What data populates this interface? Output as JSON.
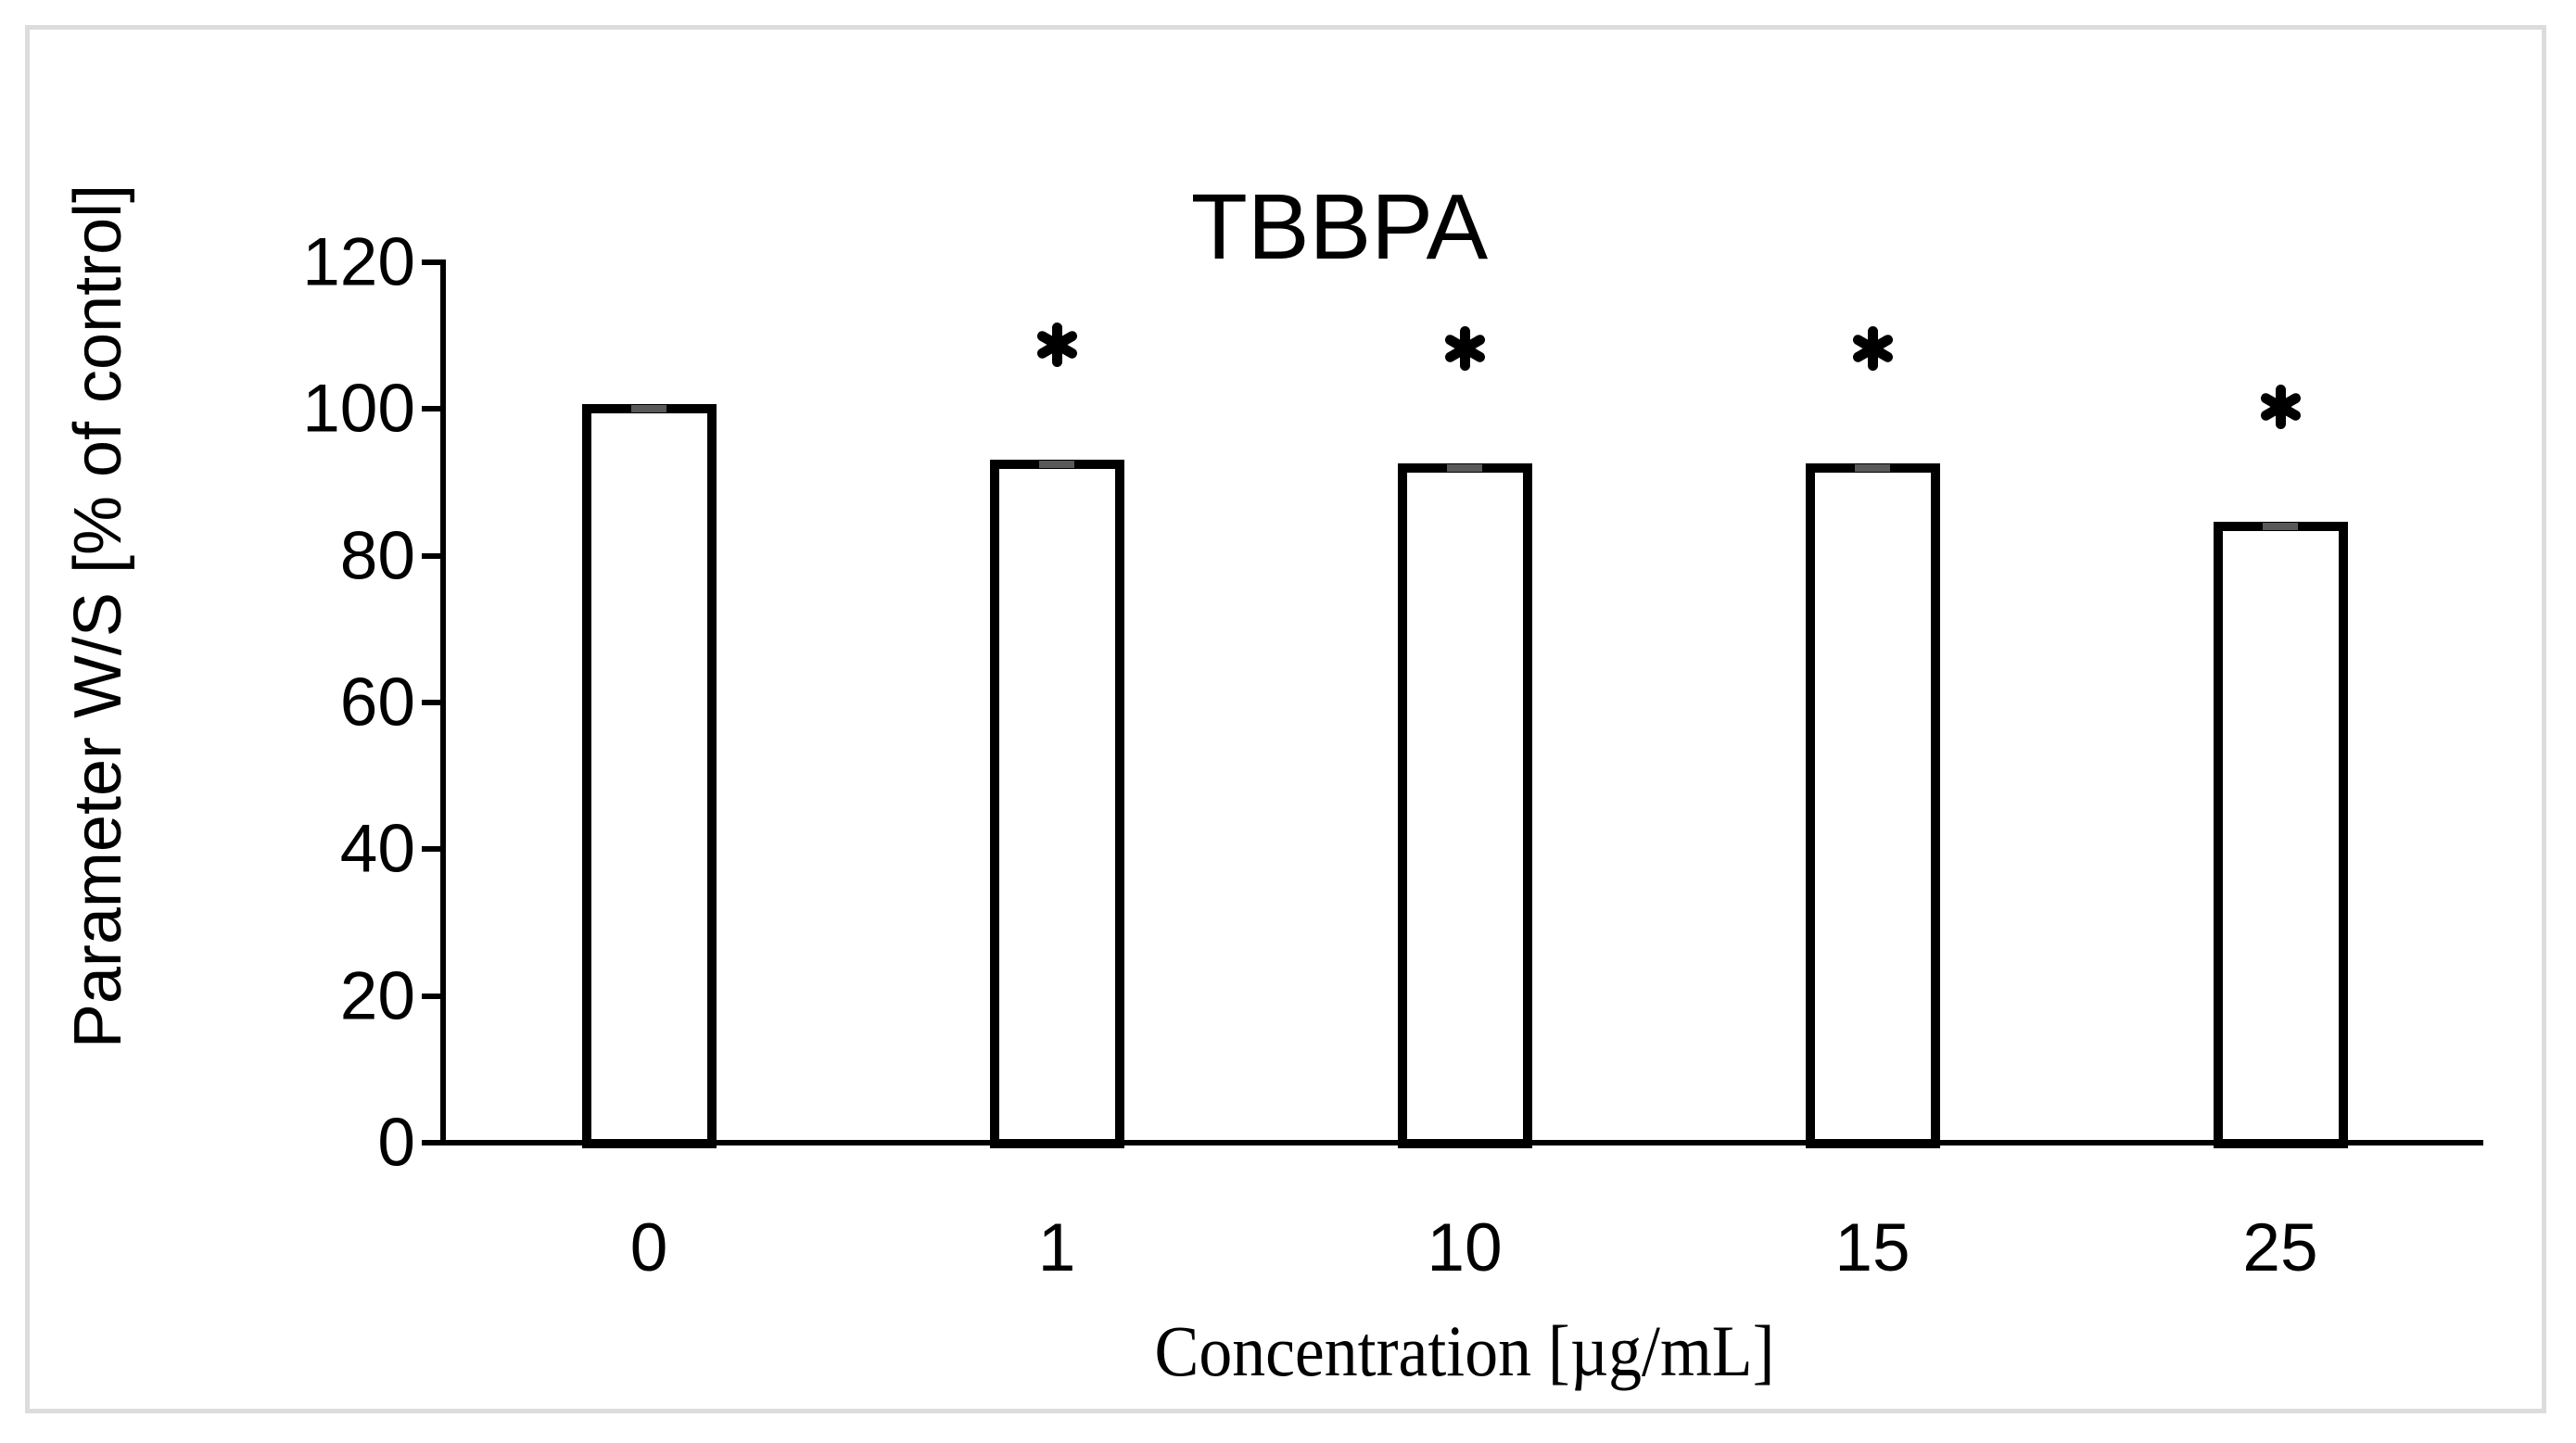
{
  "chart_data": {
    "type": "bar",
    "title": "TBBPA",
    "categories": [
      "0",
      "1",
      "10",
      "15",
      "25"
    ],
    "values": [
      100,
      92.5,
      92,
      92,
      84
    ],
    "error_sd": [
      0.5,
      0.5,
      0.5,
      0.5,
      0.5
    ],
    "significance_markers": [
      "",
      "*",
      "*",
      "*",
      "*"
    ],
    "xlabel": "Concentration [µg/mL]",
    "ylabel": "Parameter W/S [% of control]",
    "ylim": [
      0,
      120
    ],
    "yticks": [
      120,
      100,
      80,
      60,
      40,
      20,
      0
    ],
    "grid": false,
    "legend": false,
    "bar_fill": "#ffffff",
    "bar_border_color": "#000000",
    "error_bar_color": "#595959",
    "axis_color": "#000000",
    "frame_color": "#dcdcdc"
  }
}
